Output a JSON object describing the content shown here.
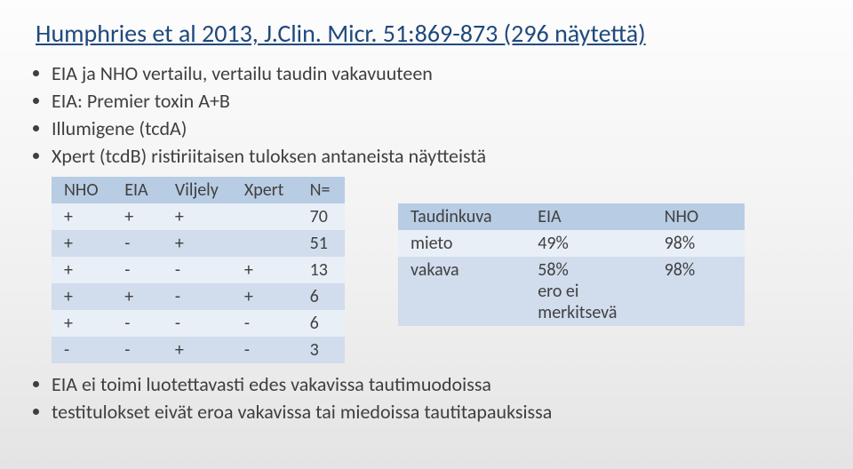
{
  "title": "Humphries et al 2013, J.Clin. Micr. 51:869-873   (296 näytettä)",
  "intro_bullets": [
    "EIA ja NHO vertailu, vertailu taudin vakavuuteen",
    "EIA: Premier toxin A+B",
    "Illumigene (tcdA)",
    "Xpert (tcdB) ristiriitaisen tuloksen antaneista näytteistä"
  ],
  "table1": {
    "headers": [
      "NHO",
      "EIA",
      "Viljely",
      "Xpert",
      "N="
    ],
    "rows": [
      [
        "+",
        "+",
        "+",
        "",
        "70"
      ],
      [
        "+",
        "-",
        "+",
        "",
        "51"
      ],
      [
        "+",
        "-",
        "-",
        "+",
        "13"
      ],
      [
        "+",
        "+",
        "-",
        "+",
        "6"
      ],
      [
        "+",
        "-",
        "-",
        "-",
        "6"
      ],
      [
        "-",
        "-",
        "+",
        "-",
        "3"
      ]
    ]
  },
  "table2": {
    "headers": [
      "Taudinkuva",
      "EIA",
      "NHO"
    ],
    "rows": [
      [
        "mieto",
        "49%",
        "98%"
      ],
      [
        "vakava",
        "58%\nero ei\nmerkitsevä",
        "98%"
      ]
    ]
  },
  "footer_bullets": [
    "EIA ei toimi luotettavasti edes vakavissa tautimuodoissa",
    "testitulokset eivät eroa vakavissa tai miedoissa tautitapauksissa"
  ]
}
